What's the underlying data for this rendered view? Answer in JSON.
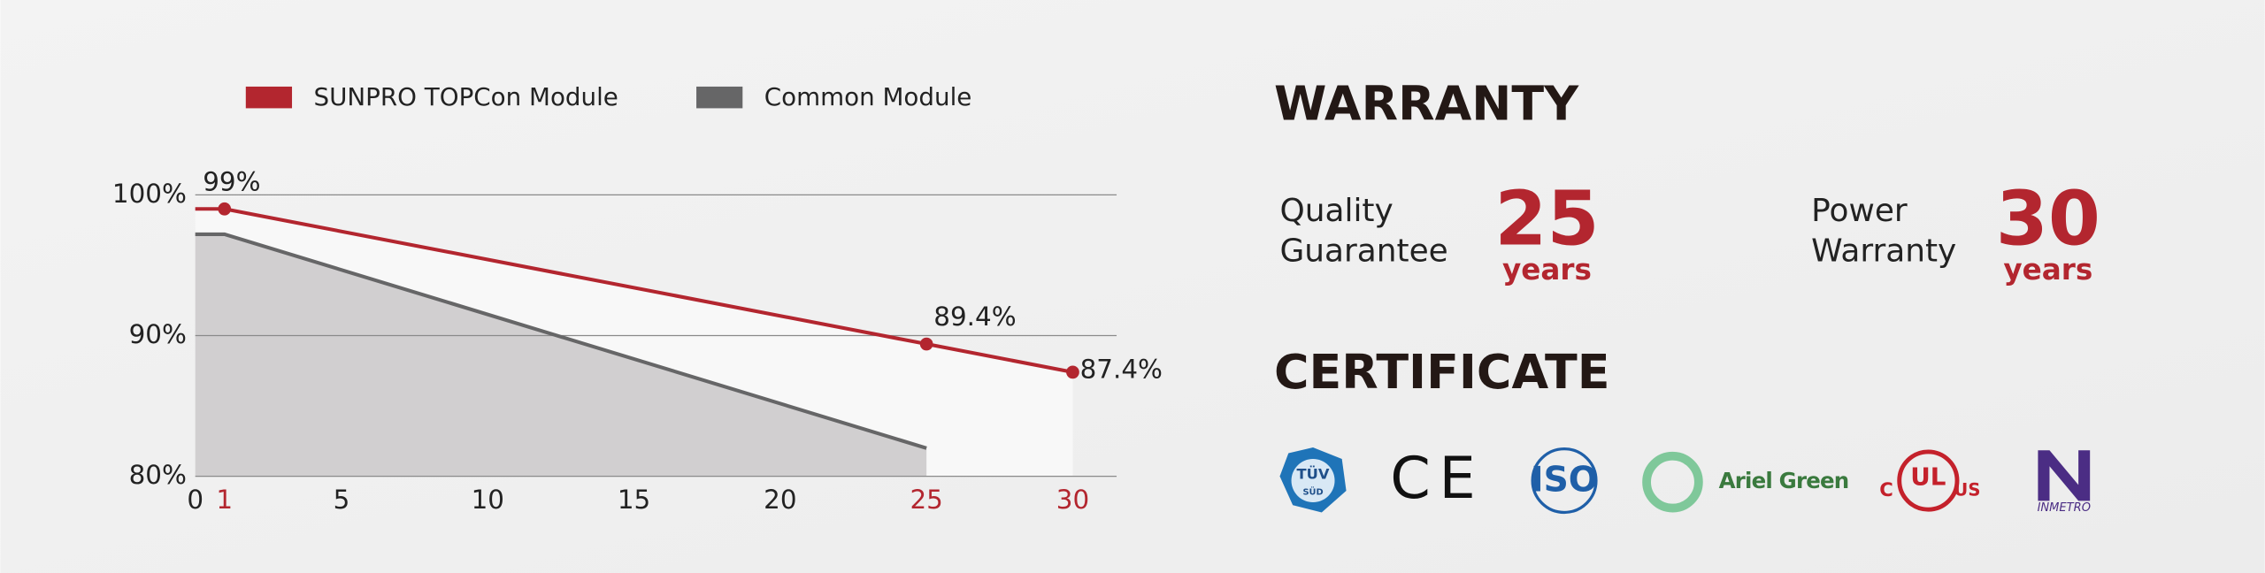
{
  "chart_data": {
    "type": "line",
    "series": [
      {
        "name": "SUNPRO TOPCon Module",
        "color": "#b3262f",
        "area_color": "#f8f8f8",
        "x": [
          0,
          1,
          25,
          30
        ],
        "values": [
          99,
          99,
          89.4,
          87.4
        ],
        "value_labels": [
          null,
          "99%",
          "89.4%",
          "87.4%"
        ]
      },
      {
        "name": "Common Module",
        "color": "#666667",
        "area_color": "#d1cfd0",
        "x": [
          0,
          1,
          25
        ],
        "values": [
          97.2,
          97.2,
          82
        ]
      }
    ],
    "xlim": [
      0,
      31.5
    ],
    "xticks": [
      0,
      1,
      5,
      10,
      15,
      20,
      25,
      30
    ],
    "xtick_colors": [
      "#222",
      "#b3262f",
      "#222",
      "#222",
      "#222",
      "#222",
      "#b3262f",
      "#b3262f"
    ],
    "ylim": [
      80,
      100
    ],
    "yticks": [
      {
        "value": 80,
        "label": "80%"
      },
      {
        "value": 90,
        "label": "90%"
      },
      {
        "value": 100,
        "label": "100%"
      }
    ],
    "grid": true,
    "legend": "top"
  },
  "warranty": {
    "title": "WARRANTY",
    "items": [
      {
        "label": [
          "Quality",
          "Guarantee"
        ],
        "number": "25",
        "unit": "years"
      },
      {
        "label": [
          "Power",
          "Warranty"
        ],
        "number": "30",
        "unit": "years"
      }
    ]
  },
  "certificate": {
    "title": "CERTIFICATE",
    "logos": [
      [
        "TÜV",
        "SÜD"
      ],
      [
        "CE"
      ],
      [
        "ISO"
      ],
      [
        "Ariel Green"
      ],
      [
        "C",
        "UL",
        "US"
      ],
      [
        "INMETRO"
      ]
    ]
  }
}
